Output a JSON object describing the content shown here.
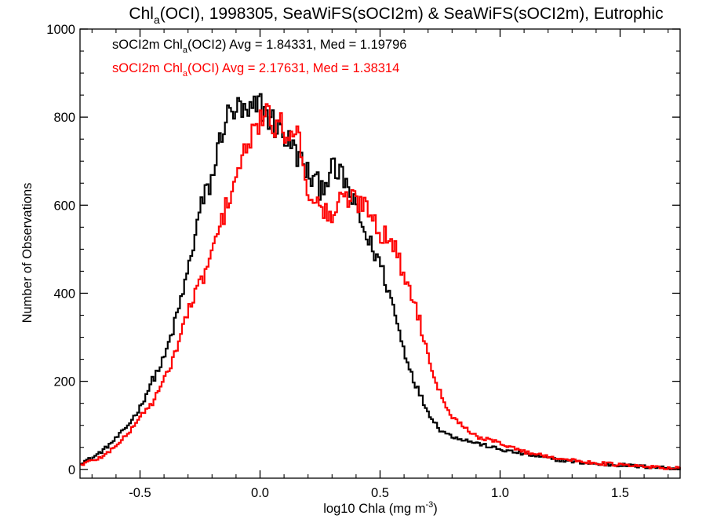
{
  "chart_data": {
    "type": "line",
    "step": true,
    "title": {
      "prefix": "Chl",
      "sub": "a",
      "suffix": "(OCI), 1998305, SeaWiFS(sOCI2m) & SeaWiFS(sOCI2m), Eutrophic"
    },
    "xlabel": {
      "prefix": "log10 Chla (mg m",
      "sup": "-3",
      "suffix": ")"
    },
    "ylabel": "Number of Observations",
    "xlim": [
      -0.75,
      1.75
    ],
    "ylim": [
      -20,
      1000
    ],
    "xticks": [
      {
        "value": -0.5,
        "label": "-0.5"
      },
      {
        "value": 0.0,
        "label": "0.0"
      },
      {
        "value": 0.5,
        "label": "0.5"
      },
      {
        "value": 1.0,
        "label": "1.0"
      },
      {
        "value": 1.5,
        "label": "1.5"
      }
    ],
    "yticks": [
      {
        "value": 0,
        "label": "0"
      },
      {
        "value": 200,
        "label": "200"
      },
      {
        "value": 400,
        "label": "400"
      },
      {
        "value": 600,
        "label": "600"
      },
      {
        "value": 800,
        "label": "800"
      },
      {
        "value": 1000,
        "label": "1000"
      }
    ],
    "legend": [
      {
        "series": "black",
        "prefix": "sOCI2m Chl",
        "sub": "a",
        "suffix": "(OCI2) Avg = 1.84331, Med = 1.19796",
        "color": "#000000"
      },
      {
        "series": "red",
        "prefix": "sOCI2m Chl",
        "sub": "a",
        "suffix": "(OCI) Avg = 2.17631, Med = 1.38314",
        "color": "#ff0000"
      }
    ],
    "legend_position": "top-left",
    "grid": false,
    "series": [
      {
        "key": "black",
        "color": "#000000",
        "x": [
          -0.75,
          -0.7,
          -0.65,
          -0.6,
          -0.55,
          -0.5,
          -0.45,
          -0.4,
          -0.35,
          -0.3,
          -0.25,
          -0.2,
          -0.15,
          -0.1,
          -0.05,
          0.0,
          0.05,
          0.1,
          0.15,
          0.2,
          0.25,
          0.3,
          0.35,
          0.4,
          0.45,
          0.5,
          0.55,
          0.6,
          0.65,
          0.7,
          0.75,
          0.8,
          0.9,
          1.0,
          1.1,
          1.2,
          1.3,
          1.4,
          1.5,
          1.6,
          1.75
        ],
        "values": [
          15,
          25,
          45,
          70,
          100,
          140,
          200,
          250,
          340,
          450,
          590,
          660,
          790,
          820,
          800,
          830,
          790,
          760,
          720,
          670,
          640,
          680,
          660,
          590,
          520,
          470,
          380,
          270,
          190,
          130,
          90,
          75,
          60,
          45,
          35,
          25,
          18,
          12,
          10,
          6,
          2
        ]
      },
      {
        "key": "red",
        "color": "#ff0000",
        "x": [
          -0.75,
          -0.7,
          -0.65,
          -0.6,
          -0.55,
          -0.5,
          -0.45,
          -0.4,
          -0.35,
          -0.3,
          -0.25,
          -0.2,
          -0.15,
          -0.1,
          -0.05,
          0.0,
          0.05,
          0.1,
          0.15,
          0.2,
          0.25,
          0.3,
          0.35,
          0.4,
          0.45,
          0.5,
          0.55,
          0.6,
          0.65,
          0.7,
          0.75,
          0.8,
          0.9,
          1.0,
          1.1,
          1.2,
          1.3,
          1.4,
          1.5,
          1.6,
          1.75
        ],
        "values": [
          10,
          20,
          30,
          55,
          80,
          120,
          150,
          200,
          270,
          360,
          420,
          490,
          580,
          670,
          730,
          800,
          790,
          770,
          780,
          640,
          590,
          575,
          620,
          610,
          600,
          540,
          520,
          440,
          370,
          260,
          175,
          120,
          75,
          60,
          40,
          30,
          20,
          15,
          10,
          6,
          2
        ]
      }
    ]
  }
}
